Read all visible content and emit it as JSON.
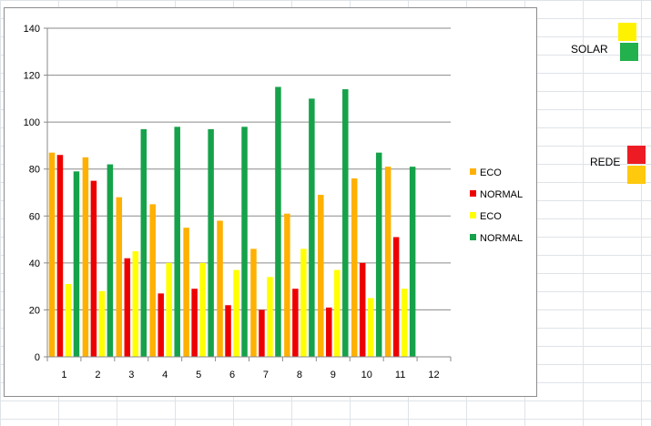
{
  "chart_data": {
    "type": "bar",
    "categories": [
      "1",
      "2",
      "3",
      "4",
      "5",
      "6",
      "7",
      "8",
      "9",
      "10",
      "11",
      "12"
    ],
    "series": [
      {
        "name": "ECO",
        "color": "#FFB000",
        "values": [
          87,
          85,
          68,
          65,
          55,
          58,
          46,
          61,
          69,
          76,
          81,
          null
        ]
      },
      {
        "name": "NORMAL",
        "color": "#EE0000",
        "values": [
          86,
          75,
          42,
          27,
          29,
          22,
          20,
          29,
          21,
          40,
          51,
          null
        ]
      },
      {
        "name": "ECO",
        "color": "#FFFF00",
        "values": [
          31,
          28,
          45,
          40,
          40,
          37,
          34,
          46,
          37,
          25,
          29,
          null
        ]
      },
      {
        "name": "NORMAL",
        "color": "#16A24A",
        "values": [
          79,
          82,
          97,
          98,
          97,
          98,
          115,
          110,
          114,
          87,
          81,
          null
        ]
      }
    ],
    "ylim": [
      0,
      140
    ],
    "yticks": [
      0,
      20,
      40,
      60,
      80,
      100,
      120,
      140
    ],
    "grid": true,
    "legend_position": "right"
  },
  "side_legend": {
    "solar_label": "SOLAR",
    "rede_label": "REDE",
    "solar_colors": [
      "#FFF200",
      "#22B14C"
    ],
    "rede_colors": [
      "#ED1C24",
      "#FFC90E"
    ]
  }
}
